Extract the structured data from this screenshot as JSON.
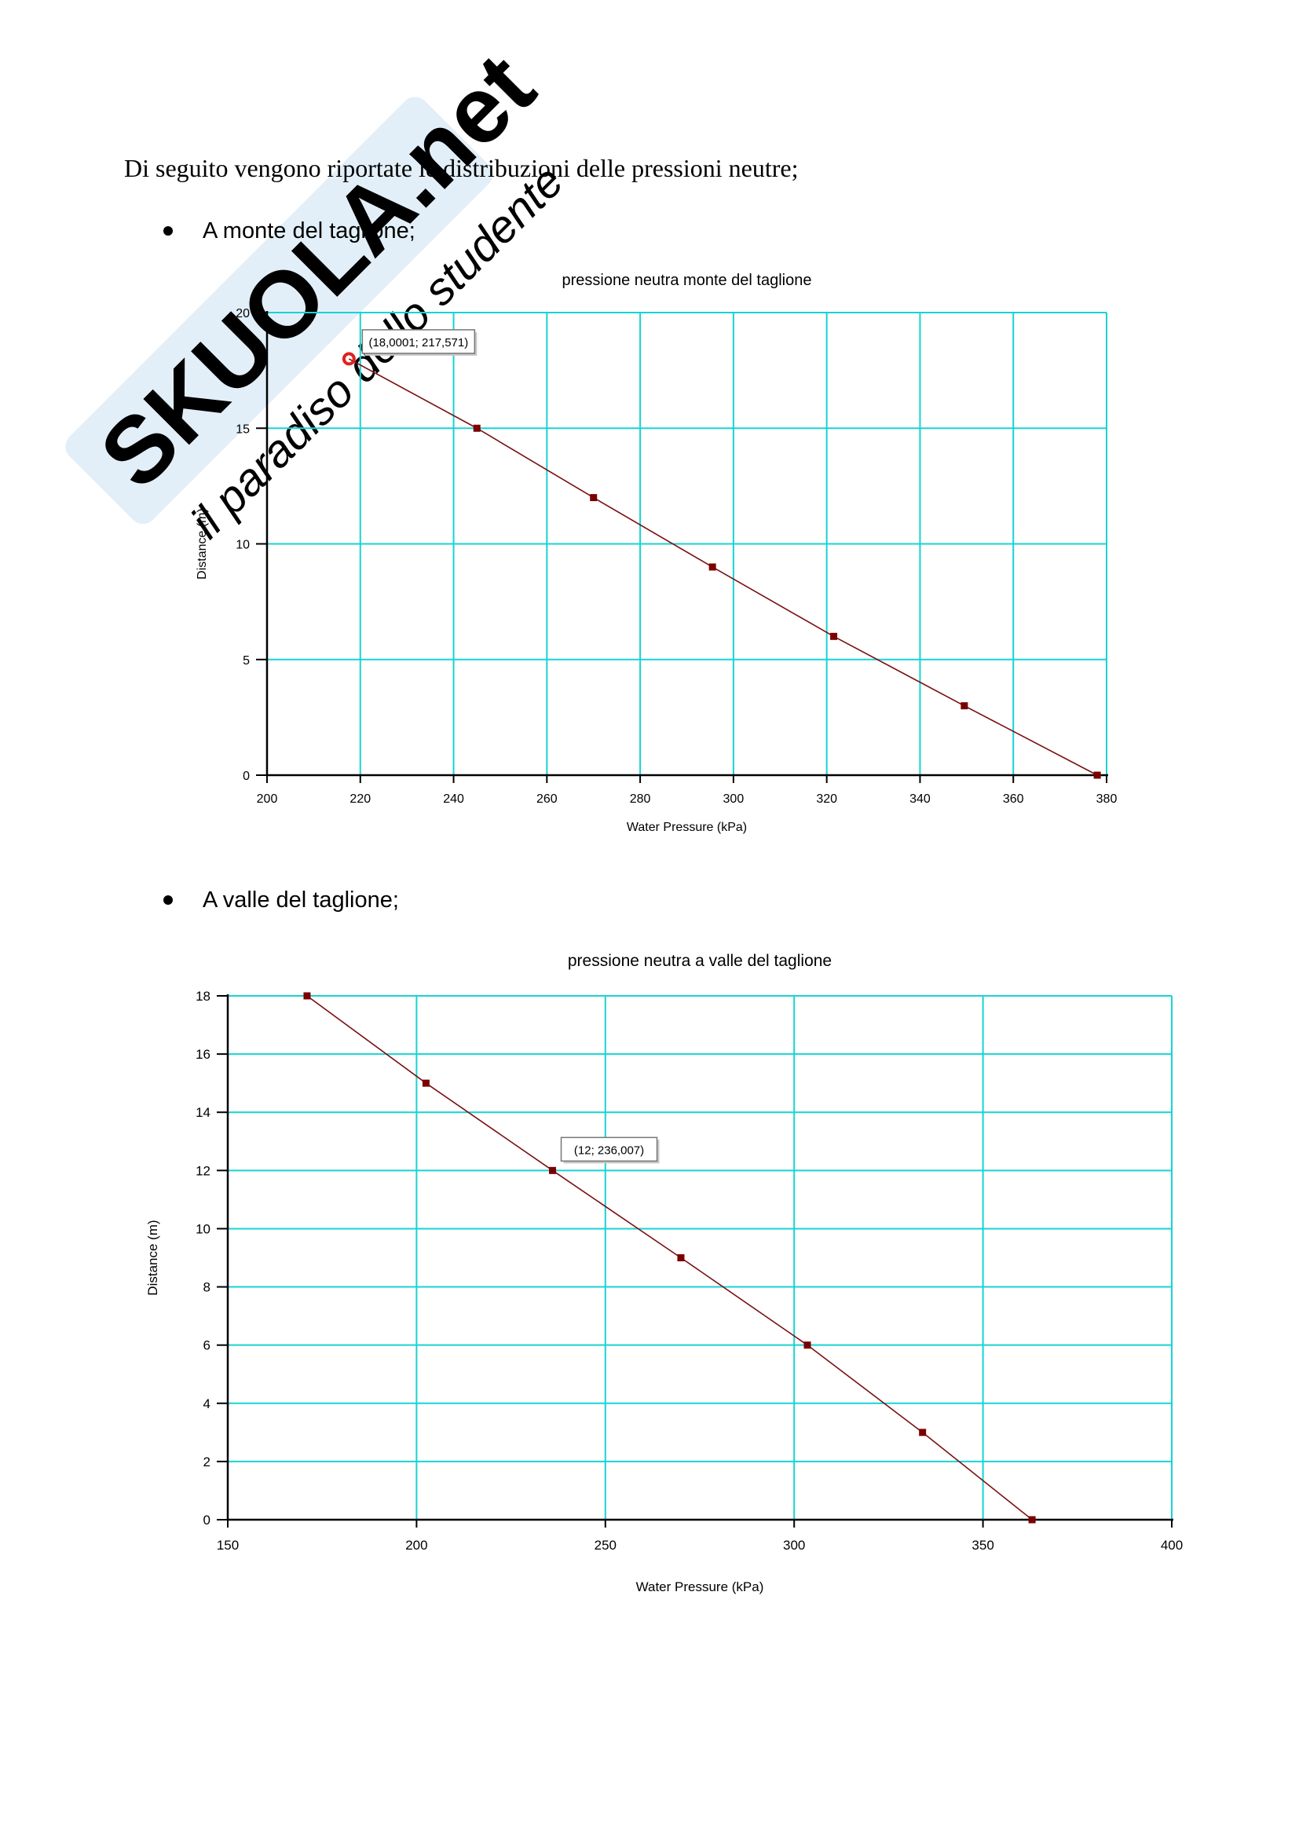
{
  "document": {
    "intro_text": "Di seguito vengono riportate le distribuzioni delle pressioni neutre;",
    "sections": [
      {
        "bullet_label": "A monte del taglione;"
      },
      {
        "bullet_label": "A valle del taglione;"
      }
    ],
    "watermark": {
      "brand_text": "SKUOLA.net",
      "tagline": "il paradiso dello studente",
      "color": "#e6f0f8"
    }
  },
  "colors": {
    "grid": "#19d3d3",
    "series_line": "#7a1010",
    "marker": "#7a0000",
    "highlight_marker": "#e02020"
  },
  "chart_data": [
    {
      "type": "line",
      "title": "pressione neutra monte del taglione",
      "xlabel": "Water Pressure (kPa)",
      "ylabel": "Distance (m)",
      "xlim": [
        200,
        380
      ],
      "ylim": [
        0,
        20
      ],
      "xticks": [
        200,
        220,
        240,
        260,
        280,
        300,
        320,
        340,
        360,
        380
      ],
      "yticks": [
        0,
        5,
        10,
        15,
        20
      ],
      "grid": true,
      "series": [
        {
          "x": [
            217.571,
            245,
            270,
            295.5,
            321.5,
            349.5,
            378
          ],
          "y": [
            18,
            15,
            12,
            9,
            6,
            3,
            0
          ]
        }
      ],
      "tooltip": {
        "text": "(18,0001; 217,571)",
        "x": 217.571,
        "y": 18
      }
    },
    {
      "type": "line",
      "title": "pressione neutra a valle del taglione",
      "xlabel": "Water Pressure (kPa)",
      "ylabel": "Distance (m)",
      "xlim": [
        150,
        400
      ],
      "ylim": [
        0,
        18
      ],
      "xticks": [
        150,
        200,
        250,
        300,
        350,
        400
      ],
      "yticks": [
        0,
        2,
        4,
        6,
        8,
        10,
        12,
        14,
        16,
        18
      ],
      "grid": true,
      "series": [
        {
          "x": [
            171,
            202.5,
            236.007,
            270,
            303.5,
            334,
            363
          ],
          "y": [
            18,
            15,
            12,
            9,
            6,
            3,
            0
          ]
        }
      ],
      "tooltip": {
        "text": "(12; 236,007)",
        "x": 236.007,
        "y": 12
      }
    }
  ]
}
